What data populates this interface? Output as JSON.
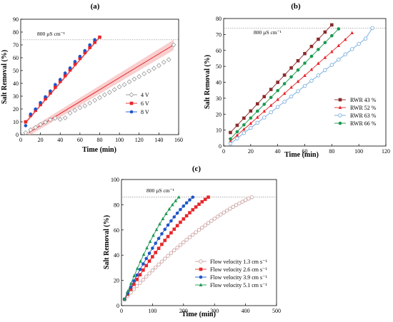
{
  "chart_data": [
    {
      "panel_label": "(a)",
      "type": "scatter",
      "xlabel": "Time (min)",
      "ylabel": "Salt Removal (%)",
      "xlim": [
        0,
        160
      ],
      "ylim": [
        0,
        90
      ],
      "xticks": [
        "0",
        "20",
        "40",
        "60",
        "80",
        "100",
        "120",
        "140",
        "160"
      ],
      "yticks": [
        "0",
        "10",
        "20",
        "30",
        "40",
        "50",
        "60",
        "70",
        "80",
        "90"
      ],
      "reference_line": {
        "y": 74,
        "label": "800 µS cm⁻¹"
      },
      "legend_position": "center-right",
      "series": [
        {
          "name": "4 V",
          "color": "#999999",
          "marker": "diamond-open",
          "x_start": 5,
          "x_step": 5,
          "count": 31,
          "values": [
            1.5,
            3.8,
            5.6,
            7.9,
            9.6,
            11.6,
            12.8,
            11.9,
            13.1,
            16.9,
            19.0,
            21.0,
            22.5,
            24.6,
            26.8,
            28.9,
            31.1,
            33.0,
            35.1,
            37.3,
            39.0,
            41.2,
            43.3,
            45.3,
            47.5,
            49.6,
            51.7,
            53.9,
            56.5,
            58.5,
            70.0
          ]
        },
        {
          "name": "6 V",
          "color": "#e8262a",
          "marker": "square",
          "x_start": 5,
          "x_step": 5,
          "count": 16,
          "values": [
            10,
            15,
            19,
            23.5,
            28,
            32.5,
            37,
            41.5,
            46,
            50.5,
            55,
            59.5,
            64,
            68,
            72,
            76
          ]
        },
        {
          "name": "8 V",
          "color": "#1f56c8",
          "marker": "circle",
          "x_start": 5,
          "x_step": 5,
          "count": 15,
          "values": [
            7,
            16,
            20,
            25,
            29.5,
            34,
            39,
            43,
            48,
            52,
            57,
            61,
            65.5,
            70,
            74
          ]
        }
      ]
    },
    {
      "panel_label": "(b)",
      "type": "line",
      "xlabel": "Time (min)",
      "ylabel": "Salt Removal (%)",
      "xlim": [
        0,
        120
      ],
      "ylim": [
        0,
        80
      ],
      "xticks": [
        "0",
        "20",
        "40",
        "60",
        "80",
        "100",
        "120"
      ],
      "yticks": [
        "0",
        "10",
        "20",
        "30",
        "40",
        "50",
        "60",
        "70",
        "80"
      ],
      "reference_line": {
        "y": 74,
        "label": "800 µS cm⁻¹"
      },
      "legend_position": "bottom-right",
      "series": [
        {
          "name": "RWR 43 %",
          "color": "#8b2a2a",
          "marker": "square",
          "x_start": 5,
          "x_step": 5,
          "count": 16,
          "values": [
            8.5,
            13,
            17.5,
            22,
            26.5,
            31,
            35.5,
            40,
            44.5,
            49,
            53.5,
            58,
            62.5,
            67,
            71.5,
            76
          ]
        },
        {
          "name": "RWR 52 %",
          "color": "#e8262a",
          "marker": "triangle",
          "x_start": 5,
          "x_step": 5,
          "count": 19,
          "values": [
            3,
            6.8,
            10.5,
            14.2,
            18,
            21.8,
            25.5,
            29.2,
            33,
            36.8,
            40.5,
            44.2,
            48,
            51.8,
            55.5,
            59.2,
            63,
            66.8,
            71
          ]
        },
        {
          "name": "RWR 63 %",
          "color": "#6fa8dc",
          "marker": "circle-open",
          "x_start": 5,
          "x_step": 5,
          "count": 22,
          "values": [
            1.5,
            4.8,
            8.1,
            11.4,
            14.6,
            17.9,
            21.2,
            24.5,
            27.8,
            31.1,
            34.4,
            37.7,
            41,
            44.3,
            47.6,
            50.9,
            54.2,
            57.5,
            60.8,
            64.1,
            67.4,
            74
          ]
        },
        {
          "name": "RWR 66 %",
          "color": "#1a9850",
          "marker": "circle",
          "x_start": 5,
          "x_step": 5,
          "count": 17,
          "values": [
            4.5,
            9,
            13.3,
            17.6,
            21.9,
            26.2,
            30.5,
            34.8,
            39.1,
            43.4,
            47.7,
            52,
            56.3,
            60.6,
            64.9,
            69.2,
            73.5
          ]
        }
      ]
    },
    {
      "panel_label": "(c)",
      "type": "line",
      "xlabel": "Time (min)",
      "ylabel": "Salt Removal (%)",
      "xlim": [
        0,
        500
      ],
      "ylim": [
        0,
        100
      ],
      "xticks": [
        "0",
        "100",
        "200",
        "300",
        "400",
        "500"
      ],
      "yticks": [
        "0",
        "20",
        "40",
        "60",
        "80",
        "100"
      ],
      "reference_line": {
        "y": 86,
        "label": "800 µS cm⁻¹"
      },
      "legend_position": "bottom-right",
      "series": [
        {
          "name": "Flow velocity 1.3 cm s⁻¹",
          "color": "#c89b9b",
          "marker": "circle-open",
          "x_end": 420,
          "count": 42,
          "y_start": 5,
          "y_end": 86
        },
        {
          "name": "Flow velocity 2.6 cm s⁻¹",
          "color": "#e8262a",
          "marker": "square",
          "x_end": 280,
          "count": 28,
          "y_start": 5,
          "y_end": 86
        },
        {
          "name": "Flow velocity 3.9 cm s⁻¹",
          "color": "#1f56c8",
          "marker": "circle",
          "x_end": 230,
          "count": 23,
          "y_start": 5,
          "y_end": 86
        },
        {
          "name": "Flow velocity 5.1 cm s⁻¹",
          "color": "#1a9850",
          "marker": "triangle",
          "x_end": 185,
          "count": 18,
          "y_start": 5,
          "y_end": 86
        }
      ]
    }
  ]
}
